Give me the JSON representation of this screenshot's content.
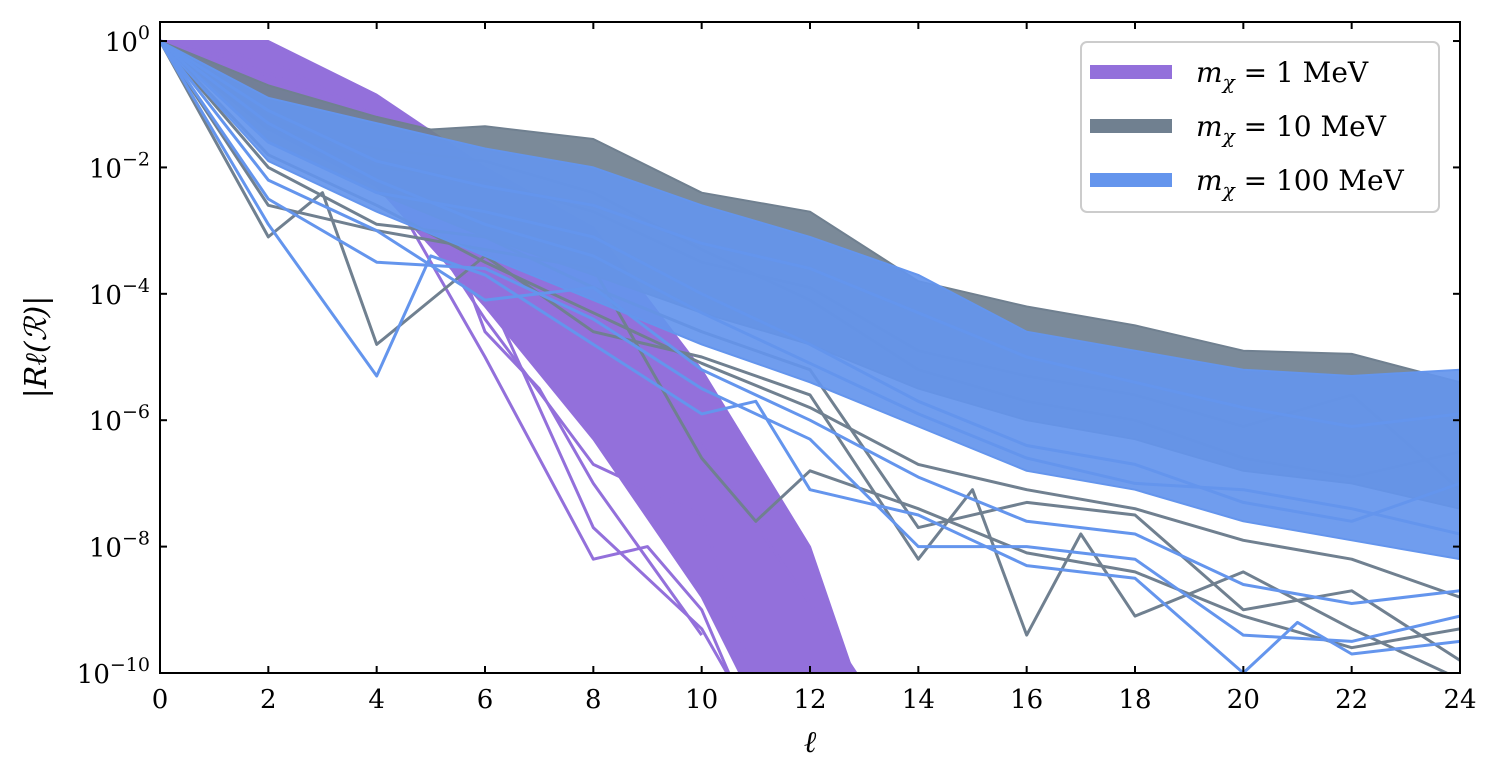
{
  "chart_data": {
    "type": "line",
    "title": "",
    "xlabel": "ℓ",
    "ylabel": "|Rℓ(ℛ)|",
    "xlim": [
      0,
      24
    ],
    "ylim": [
      1e-10,
      2
    ],
    "yscale": "log",
    "grid": false,
    "legend_position": "top-right",
    "x_ticks": [
      {
        "value": 0,
        "label": "0"
      },
      {
        "value": 2,
        "label": "2"
      },
      {
        "value": 4,
        "label": "4"
      },
      {
        "value": 6,
        "label": "6"
      },
      {
        "value": 8,
        "label": "8"
      },
      {
        "value": 10,
        "label": "10"
      },
      {
        "value": 12,
        "label": "12"
      },
      {
        "value": 14,
        "label": "14"
      },
      {
        "value": 16,
        "label": "16"
      },
      {
        "value": 18,
        "label": "18"
      },
      {
        "value": 20,
        "label": "20"
      },
      {
        "value": 22,
        "label": "22"
      },
      {
        "value": 24,
        "label": "24"
      }
    ],
    "y_ticks": [
      {
        "exp": 0,
        "base": "10",
        "sup": "0"
      },
      {
        "exp": -2,
        "base": "10",
        "sup": "−2"
      },
      {
        "exp": -4,
        "base": "10",
        "sup": "−4"
      },
      {
        "exp": -6,
        "base": "10",
        "sup": "−6"
      },
      {
        "exp": -8,
        "base": "10",
        "sup": "−8"
      },
      {
        "exp": -10,
        "base": "10",
        "sup": "−10"
      }
    ],
    "series": [
      {
        "name": "mχ = 1 MeV",
        "legend_label": "m",
        "legend_sub": "χ",
        "legend_rest": " = 1 MeV",
        "color": "#9370DB",
        "band_upper": [
          [
            0,
            0
          ],
          [
            2,
            0
          ],
          [
            4,
            -0.85
          ],
          [
            6,
            -2.0
          ],
          [
            8,
            -2.95
          ],
          [
            10,
            -5.2
          ],
          [
            12,
            -8.0
          ],
          [
            12.8,
            -10
          ]
        ],
        "band_lower": [
          [
            0,
            0
          ],
          [
            2,
            -1.4
          ],
          [
            4,
            -2.3
          ],
          [
            6,
            -4.2
          ],
          [
            8,
            -6.3
          ],
          [
            10,
            -8.8
          ],
          [
            10.7,
            -10
          ]
        ],
        "lines": [
          [
            [
              0,
              0
            ],
            [
              2,
              -0.5
            ],
            [
              4,
              -1.3
            ],
            [
              6,
              -2.5
            ],
            [
              8,
              -4.2
            ],
            [
              10,
              -6.4
            ],
            [
              12,
              -8.9
            ],
            [
              13,
              -10.2
            ]
          ],
          [
            [
              0,
              0
            ],
            [
              2,
              -0.8
            ],
            [
              4,
              -1.8
            ],
            [
              6,
              -4.4
            ],
            [
              8,
              -6.7
            ],
            [
              10,
              -7.5
            ],
            [
              11,
              -10.2
            ]
          ],
          [
            [
              0,
              0
            ],
            [
              2,
              -0.6
            ],
            [
              4,
              -1.6
            ],
            [
              6,
              -3.9
            ],
            [
              8,
              -7.7
            ],
            [
              10,
              -9.3
            ],
            [
              10.6,
              -10.2
            ]
          ],
          [
            [
              0,
              0
            ],
            [
              2,
              -1.0
            ],
            [
              4,
              -2.0
            ],
            [
              6,
              -5.0
            ],
            [
              8,
              -8.2
            ],
            [
              9,
              -8.0
            ],
            [
              10,
              -9.0
            ],
            [
              10.6,
              -10.2
            ]
          ],
          [
            [
              0,
              0
            ],
            [
              2,
              -0.3
            ],
            [
              4,
              -1.2
            ],
            [
              5,
              -2.3
            ],
            [
              6,
              -4.6
            ],
            [
              7,
              -5.5
            ],
            [
              8,
              -7.0
            ],
            [
              10,
              -9.4
            ]
          ]
        ]
      },
      {
        "name": "mχ = 10 MeV",
        "legend_label": "m",
        "legend_sub": "χ",
        "legend_rest": " = 10 MeV",
        "color": "#708090",
        "band_upper": [
          [
            0,
            0
          ],
          [
            2,
            -0.7
          ],
          [
            4,
            -1.2
          ],
          [
            5,
            -1.4
          ],
          [
            6,
            -1.35
          ],
          [
            8,
            -1.55
          ],
          [
            10,
            -2.4
          ],
          [
            12,
            -2.7
          ],
          [
            14,
            -3.8
          ],
          [
            16,
            -4.2
          ],
          [
            18,
            -4.5
          ],
          [
            20,
            -4.9
          ],
          [
            22,
            -4.95
          ],
          [
            24,
            -5.4
          ]
        ],
        "band_lower": [
          [
            0,
            0
          ],
          [
            2,
            -1.6
          ],
          [
            4,
            -2.4
          ],
          [
            6,
            -3.1
          ],
          [
            8,
            -3.7
          ],
          [
            10,
            -4.3
          ],
          [
            12,
            -4.8
          ],
          [
            14,
            -5.5
          ],
          [
            16,
            -6.0
          ],
          [
            18,
            -6.3
          ],
          [
            20,
            -6.8
          ],
          [
            22,
            -7.0
          ],
          [
            24,
            -7.4
          ]
        ],
        "lines": [
          [
            [
              0,
              0
            ],
            [
              2,
              -3.1
            ],
            [
              3,
              -2.4
            ],
            [
              4,
              -4.8
            ],
            [
              5,
              -4.1
            ],
            [
              6,
              -3.4
            ],
            [
              8,
              -4.6
            ],
            [
              10,
              -5.0
            ],
            [
              12,
              -5.6
            ],
            [
              14,
              -8.2
            ],
            [
              15,
              -7.1
            ],
            [
              16,
              -9.4
            ],
            [
              17,
              -7.8
            ],
            [
              18,
              -9.1
            ],
            [
              20,
              -8.4
            ],
            [
              22,
              -9.3
            ],
            [
              24,
              -10.1
            ]
          ],
          [
            [
              0,
              0
            ],
            [
              2,
              -2.6
            ],
            [
              4,
              -3.0
            ],
            [
              6,
              -3.3
            ],
            [
              8,
              -3.6
            ],
            [
              10,
              -6.6
            ],
            [
              11,
              -7.6
            ],
            [
              12,
              -6.8
            ],
            [
              14,
              -7.4
            ],
            [
              16,
              -8.1
            ],
            [
              18,
              -8.4
            ],
            [
              20,
              -9.1
            ],
            [
              22,
              -9.6
            ],
            [
              24,
              -9.3
            ]
          ],
          [
            [
              0,
              0
            ],
            [
              2,
              -2.0
            ],
            [
              4,
              -2.9
            ],
            [
              6,
              -3.1
            ],
            [
              8,
              -3.9
            ],
            [
              10,
              -4.6
            ],
            [
              12,
              -5.2
            ],
            [
              14,
              -7.7
            ],
            [
              16,
              -7.3
            ],
            [
              18,
              -7.5
            ],
            [
              20,
              -9.0
            ],
            [
              22,
              -8.7
            ],
            [
              24,
              -9.8
            ]
          ],
          [
            [
              0,
              0
            ],
            [
              2,
              -1.8
            ],
            [
              4,
              -2.6
            ],
            [
              6,
              -3.5
            ],
            [
              8,
              -4.3
            ],
            [
              10,
              -5.1
            ],
            [
              12,
              -5.8
            ],
            [
              14,
              -6.7
            ],
            [
              16,
              -7.1
            ],
            [
              18,
              -7.4
            ],
            [
              20,
              -7.9
            ],
            [
              22,
              -8.2
            ],
            [
              24,
              -8.8
            ]
          ],
          [
            [
              0,
              0
            ],
            [
              2,
              -1.2
            ],
            [
              4,
              -2.0
            ],
            [
              6,
              -2.2
            ],
            [
              8,
              -2.7
            ],
            [
              10,
              -3.5
            ],
            [
              12,
              -3.9
            ],
            [
              14,
              -4.9
            ],
            [
              16,
              -5.3
            ],
            [
              18,
              -5.6
            ],
            [
              20,
              -6.1
            ],
            [
              22,
              -5.6
            ],
            [
              24,
              -7.1
            ]
          ],
          [
            [
              0,
              0
            ],
            [
              2,
              -1.4
            ],
            [
              4,
              -1.7
            ],
            [
              6,
              -1.9
            ],
            [
              8,
              -2.4
            ],
            [
              10,
              -3.3
            ],
            [
              12,
              -4.1
            ],
            [
              14,
              -5.2
            ],
            [
              16,
              -5.7
            ],
            [
              18,
              -6.0
            ],
            [
              20,
              -6.6
            ],
            [
              22,
              -6.9
            ],
            [
              24,
              -6.5
            ]
          ]
        ]
      },
      {
        "name": "mχ = 100 MeV",
        "legend_label": "m",
        "legend_sub": "χ",
        "legend_rest": " = 100 MeV",
        "color": "#6495ED",
        "band_upper": [
          [
            0,
            0
          ],
          [
            2,
            -0.9
          ],
          [
            4,
            -1.3
          ],
          [
            6,
            -1.7
          ],
          [
            8,
            -2.0
          ],
          [
            10,
            -2.6
          ],
          [
            12,
            -3.1
          ],
          [
            14,
            -3.7
          ],
          [
            16,
            -4.6
          ],
          [
            18,
            -4.9
          ],
          [
            20,
            -5.2
          ],
          [
            22,
            -5.3
          ],
          [
            24,
            -5.2
          ]
        ],
        "band_lower": [
          [
            0,
            0
          ],
          [
            2,
            -1.9
          ],
          [
            4,
            -2.7
          ],
          [
            6,
            -3.4
          ],
          [
            8,
            -4.1
          ],
          [
            10,
            -4.8
          ],
          [
            12,
            -5.4
          ],
          [
            14,
            -6.1
          ],
          [
            16,
            -6.8
          ],
          [
            18,
            -7.1
          ],
          [
            20,
            -7.6
          ],
          [
            22,
            -7.9
          ],
          [
            24,
            -8.2
          ]
        ],
        "lines": [
          [
            [
              0,
              0
            ],
            [
              2,
              -2.9
            ],
            [
              4,
              -5.3
            ],
            [
              5,
              -3.4
            ],
            [
              6,
              -3.7
            ],
            [
              8,
              -4.8
            ],
            [
              10,
              -5.9
            ],
            [
              11,
              -5.7
            ],
            [
              12,
              -7.1
            ],
            [
              14,
              -7.5
            ],
            [
              15,
              -7.9
            ],
            [
              16,
              -8.3
            ],
            [
              18,
              -8.5
            ],
            [
              20,
              -10.0
            ],
            [
              21,
              -9.2
            ],
            [
              22,
              -9.7
            ],
            [
              24,
              -9.5
            ]
          ],
          [
            [
              0,
              0
            ],
            [
              2,
              -2.5
            ],
            [
              4,
              -3.5
            ],
            [
              6,
              -3.6
            ],
            [
              8,
              -4.4
            ],
            [
              10,
              -5.5
            ],
            [
              12,
              -6.3
            ],
            [
              14,
              -8.0
            ],
            [
              16,
              -8.0
            ],
            [
              18,
              -8.2
            ],
            [
              20,
              -9.4
            ],
            [
              22,
              -9.5
            ],
            [
              24,
              -9.1
            ]
          ],
          [
            [
              0,
              0
            ],
            [
              2,
              -2.2
            ],
            [
              4,
              -3.0
            ],
            [
              6,
              -4.1
            ],
            [
              8,
              -3.9
            ],
            [
              10,
              -5.2
            ],
            [
              12,
              -6.0
            ],
            [
              14,
              -6.9
            ],
            [
              16,
              -7.6
            ],
            [
              18,
              -7.8
            ],
            [
              20,
              -8.6
            ],
            [
              22,
              -8.9
            ],
            [
              24,
              -8.7
            ]
          ],
          [
            [
              0,
              0
            ],
            [
              2,
              -1.6
            ],
            [
              4,
              -2.4
            ],
            [
              6,
              -2.7
            ],
            [
              8,
              -3.1
            ],
            [
              10,
              -4.0
            ],
            [
              12,
              -4.8
            ],
            [
              14,
              -5.7
            ],
            [
              16,
              -6.4
            ],
            [
              18,
              -6.7
            ],
            [
              20,
              -7.3
            ],
            [
              22,
              -7.6
            ],
            [
              24,
              -7.0
            ]
          ],
          [
            [
              0,
              0
            ],
            [
              2,
              -1.1
            ],
            [
              4,
              -1.9
            ],
            [
              6,
              -2.3
            ],
            [
              8,
              -2.6
            ],
            [
              10,
              -3.2
            ],
            [
              12,
              -3.6
            ],
            [
              14,
              -4.3
            ],
            [
              16,
              -5.0
            ],
            [
              18,
              -5.4
            ],
            [
              20,
              -5.8
            ],
            [
              22,
              -6.1
            ],
            [
              24,
              -5.9
            ]
          ],
          [
            [
              0,
              0
            ],
            [
              2,
              -1.3
            ],
            [
              4,
              -2.2
            ],
            [
              6,
              -2.9
            ],
            [
              8,
              -3.4
            ],
            [
              10,
              -4.3
            ],
            [
              12,
              -5.1
            ],
            [
              14,
              -5.9
            ],
            [
              16,
              -6.6
            ],
            [
              18,
              -7.0
            ],
            [
              20,
              -7.1
            ],
            [
              22,
              -7.4
            ],
            [
              24,
              -7.8
            ]
          ]
        ]
      }
    ]
  }
}
